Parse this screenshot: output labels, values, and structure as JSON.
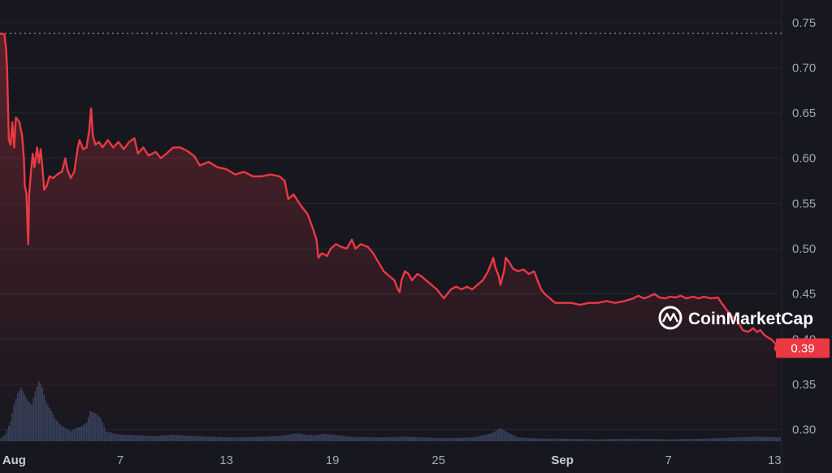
{
  "chart_data": {
    "type": "area",
    "title": "",
    "xlabel": "",
    "ylabel": "",
    "x_ticks": [
      {
        "label": "Aug",
        "day": 1,
        "major": true
      },
      {
        "label": "7",
        "day": 7,
        "major": false
      },
      {
        "label": "13",
        "day": 13,
        "major": false
      },
      {
        "label": "19",
        "day": 19,
        "major": false
      },
      {
        "label": "25",
        "day": 25,
        "major": false
      },
      {
        "label": "Sep",
        "day": 32,
        "major": true
      },
      {
        "label": "7",
        "day": 38,
        "major": false
      },
      {
        "label": "13",
        "day": 44,
        "major": false
      }
    ],
    "y_ticks": [
      "0.75",
      "0.70",
      "0.65",
      "0.60",
      "0.55",
      "0.50",
      "0.45",
      "0.40",
      "0.35",
      "0.30"
    ],
    "y_tick_values": [
      0.75,
      0.7,
      0.65,
      0.6,
      0.55,
      0.5,
      0.45,
      0.4,
      0.35,
      0.3
    ],
    "ylim": [
      0.287,
      0.757
    ],
    "xlim": [
      0.2,
      44.4
    ],
    "grid": true,
    "reference_line_value": 0.738,
    "current_price_label": "0.39",
    "current_price_value": 0.39,
    "colors": {
      "line": "#ea3943",
      "background": "#17171f",
      "volume": "#3a4560",
      "axis_text": "#a1a7bb"
    },
    "series": [
      {
        "values": [
          [
            0.2,
            0.738
          ],
          [
            0.45,
            0.737
          ],
          [
            0.55,
            0.72
          ],
          [
            0.6,
            0.7
          ],
          [
            0.7,
            0.62
          ],
          [
            0.8,
            0.615
          ],
          [
            0.9,
            0.64
          ],
          [
            1.0,
            0.612
          ],
          [
            1.1,
            0.645
          ],
          [
            1.3,
            0.64
          ],
          [
            1.45,
            0.625
          ],
          [
            1.55,
            0.6
          ],
          [
            1.6,
            0.57
          ],
          [
            1.7,
            0.56
          ],
          [
            1.75,
            0.53
          ],
          [
            1.8,
            0.505
          ],
          [
            1.85,
            0.56
          ],
          [
            1.95,
            0.585
          ],
          [
            2.05,
            0.605
          ],
          [
            2.15,
            0.59
          ],
          [
            2.3,
            0.612
          ],
          [
            2.4,
            0.595
          ],
          [
            2.5,
            0.61
          ],
          [
            2.6,
            0.59
          ],
          [
            2.7,
            0.565
          ],
          [
            2.85,
            0.57
          ],
          [
            3.0,
            0.58
          ],
          [
            3.2,
            0.578
          ],
          [
            3.5,
            0.583
          ],
          [
            3.7,
            0.585
          ],
          [
            3.9,
            0.6
          ],
          [
            4.0,
            0.588
          ],
          [
            4.2,
            0.578
          ],
          [
            4.4,
            0.585
          ],
          [
            4.6,
            0.612
          ],
          [
            4.7,
            0.62
          ],
          [
            4.9,
            0.61
          ],
          [
            5.1,
            0.612
          ],
          [
            5.25,
            0.632
          ],
          [
            5.35,
            0.655
          ],
          [
            5.45,
            0.625
          ],
          [
            5.6,
            0.615
          ],
          [
            5.8,
            0.618
          ],
          [
            6.0,
            0.612
          ],
          [
            6.3,
            0.62
          ],
          [
            6.6,
            0.612
          ],
          [
            6.9,
            0.618
          ],
          [
            7.2,
            0.61
          ],
          [
            7.5,
            0.618
          ],
          [
            7.8,
            0.622
          ],
          [
            8.0,
            0.605
          ],
          [
            8.3,
            0.612
          ],
          [
            8.6,
            0.603
          ],
          [
            9.0,
            0.607
          ],
          [
            9.3,
            0.6
          ],
          [
            9.6,
            0.605
          ],
          [
            10.0,
            0.612
          ],
          [
            10.4,
            0.612
          ],
          [
            10.8,
            0.608
          ],
          [
            11.2,
            0.602
          ],
          [
            11.5,
            0.592
          ],
          [
            12.0,
            0.596
          ],
          [
            12.5,
            0.59
          ],
          [
            13.0,
            0.588
          ],
          [
            13.5,
            0.582
          ],
          [
            14.0,
            0.585
          ],
          [
            14.5,
            0.58
          ],
          [
            15.0,
            0.58
          ],
          [
            15.5,
            0.582
          ],
          [
            16.0,
            0.58
          ],
          [
            16.3,
            0.575
          ],
          [
            16.5,
            0.555
          ],
          [
            16.8,
            0.56
          ],
          [
            17.2,
            0.548
          ],
          [
            17.6,
            0.538
          ],
          [
            17.9,
            0.522
          ],
          [
            18.1,
            0.51
          ],
          [
            18.2,
            0.49
          ],
          [
            18.4,
            0.495
          ],
          [
            18.7,
            0.492
          ],
          [
            18.9,
            0.5
          ],
          [
            19.2,
            0.505
          ],
          [
            19.5,
            0.502
          ],
          [
            19.8,
            0.5
          ],
          [
            20.1,
            0.51
          ],
          [
            20.3,
            0.5
          ],
          [
            20.6,
            0.505
          ],
          [
            21.0,
            0.502
          ],
          [
            21.3,
            0.495
          ],
          [
            21.6,
            0.485
          ],
          [
            21.9,
            0.475
          ],
          [
            22.2,
            0.47
          ],
          [
            22.5,
            0.465
          ],
          [
            22.7,
            0.455
          ],
          [
            22.8,
            0.452
          ],
          [
            22.9,
            0.465
          ],
          [
            23.1,
            0.475
          ],
          [
            23.3,
            0.472
          ],
          [
            23.5,
            0.465
          ],
          [
            23.8,
            0.472
          ],
          [
            24.0,
            0.47
          ],
          [
            24.3,
            0.465
          ],
          [
            24.6,
            0.46
          ],
          [
            24.9,
            0.455
          ],
          [
            25.1,
            0.45
          ],
          [
            25.3,
            0.445
          ],
          [
            25.5,
            0.45
          ],
          [
            25.7,
            0.455
          ],
          [
            26.0,
            0.458
          ],
          [
            26.3,
            0.455
          ],
          [
            26.6,
            0.458
          ],
          [
            26.9,
            0.455
          ],
          [
            27.2,
            0.46
          ],
          [
            27.5,
            0.465
          ],
          [
            27.8,
            0.475
          ],
          [
            28.0,
            0.485
          ],
          [
            28.1,
            0.49
          ],
          [
            28.2,
            0.48
          ],
          [
            28.4,
            0.47
          ],
          [
            28.5,
            0.46
          ],
          [
            28.7,
            0.475
          ],
          [
            28.8,
            0.49
          ],
          [
            29.0,
            0.485
          ],
          [
            29.2,
            0.478
          ],
          [
            29.5,
            0.475
          ],
          [
            29.8,
            0.477
          ],
          [
            30.1,
            0.472
          ],
          [
            30.4,
            0.475
          ],
          [
            30.6,
            0.465
          ],
          [
            30.8,
            0.455
          ],
          [
            31.0,
            0.45
          ],
          [
            31.3,
            0.445
          ],
          [
            31.6,
            0.44
          ],
          [
            32.0,
            0.44
          ],
          [
            32.5,
            0.44
          ],
          [
            33.0,
            0.438
          ],
          [
            33.5,
            0.44
          ],
          [
            34.0,
            0.44
          ],
          [
            34.5,
            0.442
          ],
          [
            35.0,
            0.44
          ],
          [
            35.5,
            0.442
          ],
          [
            36.0,
            0.445
          ],
          [
            36.3,
            0.448
          ],
          [
            36.6,
            0.445
          ],
          [
            36.9,
            0.447
          ],
          [
            37.2,
            0.45
          ],
          [
            37.5,
            0.446
          ],
          [
            37.8,
            0.445
          ],
          [
            38.1,
            0.447
          ],
          [
            38.4,
            0.446
          ],
          [
            38.7,
            0.448
          ],
          [
            39.0,
            0.445
          ],
          [
            39.4,
            0.447
          ],
          [
            39.7,
            0.445
          ],
          [
            40.0,
            0.447
          ],
          [
            40.4,
            0.445
          ],
          [
            40.8,
            0.446
          ],
          [
            41.0,
            0.44
          ],
          [
            41.3,
            0.432
          ],
          [
            41.6,
            0.425
          ],
          [
            41.9,
            0.42
          ],
          [
            42.2,
            0.41
          ],
          [
            42.5,
            0.408
          ],
          [
            42.8,
            0.412
          ],
          [
            43.0,
            0.408
          ],
          [
            43.2,
            0.41
          ],
          [
            43.4,
            0.405
          ],
          [
            43.6,
            0.402
          ],
          [
            43.8,
            0.4
          ],
          [
            44.0,
            0.396
          ],
          [
            44.2,
            0.39
          ]
        ]
      }
    ],
    "volume": [
      [
        0.2,
        0.04
      ],
      [
        0.5,
        0.1
      ],
      [
        0.8,
        0.3
      ],
      [
        1.0,
        0.55
      ],
      [
        1.2,
        0.72
      ],
      [
        1.4,
        0.8
      ],
      [
        1.6,
        0.7
      ],
      [
        1.8,
        0.6
      ],
      [
        2.0,
        0.55
      ],
      [
        2.2,
        0.75
      ],
      [
        2.4,
        0.9
      ],
      [
        2.6,
        0.8
      ],
      [
        2.8,
        0.6
      ],
      [
        3.0,
        0.5
      ],
      [
        3.3,
        0.35
      ],
      [
        3.6,
        0.25
      ],
      [
        3.9,
        0.2
      ],
      [
        4.2,
        0.15
      ],
      [
        4.5,
        0.2
      ],
      [
        4.8,
        0.22
      ],
      [
        5.1,
        0.28
      ],
      [
        5.3,
        0.45
      ],
      [
        5.6,
        0.42
      ],
      [
        5.9,
        0.35
      ],
      [
        6.2,
        0.15
      ],
      [
        6.6,
        0.12
      ],
      [
        7.0,
        0.1
      ],
      [
        8.0,
        0.09
      ],
      [
        9.0,
        0.08
      ],
      [
        10.0,
        0.1
      ],
      [
        11.0,
        0.08
      ],
      [
        12.0,
        0.07
      ],
      [
        13.0,
        0.06
      ],
      [
        14.0,
        0.06
      ],
      [
        15.0,
        0.07
      ],
      [
        16.0,
        0.08
      ],
      [
        17.0,
        0.12
      ],
      [
        17.5,
        0.1
      ],
      [
        18.0,
        0.09
      ],
      [
        18.5,
        0.11
      ],
      [
        19.0,
        0.1
      ],
      [
        20.0,
        0.07
      ],
      [
        21.0,
        0.06
      ],
      [
        22.0,
        0.06
      ],
      [
        23.0,
        0.07
      ],
      [
        24.0,
        0.06
      ],
      [
        25.0,
        0.05
      ],
      [
        26.0,
        0.05
      ],
      [
        27.0,
        0.06
      ],
      [
        28.0,
        0.12
      ],
      [
        28.5,
        0.2
      ],
      [
        29.0,
        0.12
      ],
      [
        29.5,
        0.06
      ],
      [
        30.0,
        0.05
      ],
      [
        31.0,
        0.04
      ],
      [
        32.0,
        0.04
      ],
      [
        34.0,
        0.03
      ],
      [
        36.0,
        0.04
      ],
      [
        38.0,
        0.03
      ],
      [
        40.0,
        0.04
      ],
      [
        41.0,
        0.05
      ],
      [
        42.0,
        0.06
      ],
      [
        43.0,
        0.07
      ],
      [
        44.2,
        0.06
      ]
    ]
  },
  "watermark": {
    "text": "CoinMarketCap"
  }
}
